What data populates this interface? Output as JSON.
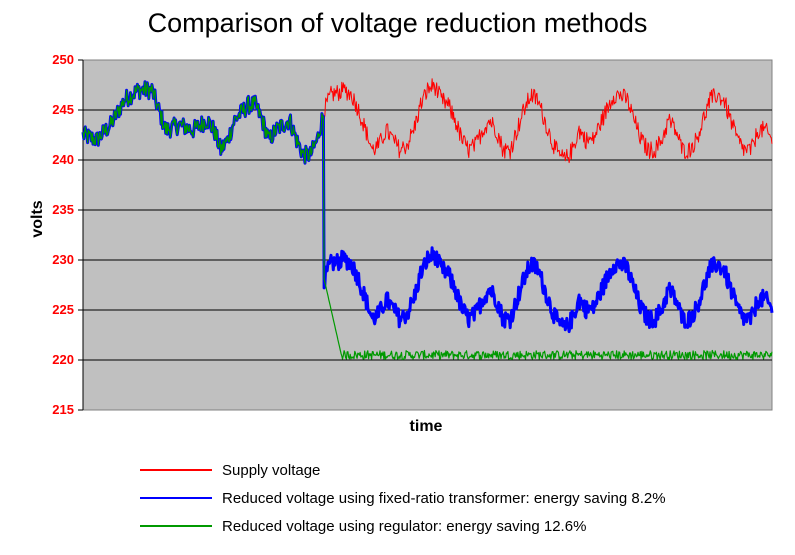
{
  "chart_data": {
    "type": "line",
    "title": "Comparison of voltage reduction methods",
    "xlabel": "time",
    "ylabel": "volts",
    "ylim": [
      215,
      250
    ],
    "yticks": [
      215,
      220,
      225,
      230,
      235,
      240,
      245,
      250
    ],
    "grid": true,
    "legend_position": "bottom",
    "x_range": [
      0,
      100
    ],
    "switch_time": 35,
    "series": [
      {
        "name": "Supply voltage",
        "color": "#ff0000",
        "keypoints": [
          [
            0,
            242.5
          ],
          [
            2,
            242
          ],
          [
            4,
            243.5
          ],
          [
            6,
            246
          ],
          [
            8,
            247
          ],
          [
            10,
            247
          ],
          [
            11,
            245
          ],
          [
            12,
            243
          ],
          [
            14,
            243.5
          ],
          [
            16,
            243
          ],
          [
            18,
            244
          ],
          [
            19,
            243
          ],
          [
            20,
            241
          ],
          [
            21,
            242
          ],
          [
            22,
            244
          ],
          [
            24,
            245.5
          ],
          [
            25,
            245.5
          ],
          [
            26,
            244
          ],
          [
            27,
            242
          ],
          [
            28,
            243
          ],
          [
            30,
            244
          ],
          [
            31,
            242
          ],
          [
            32,
            240.5
          ],
          [
            33,
            240.5
          ],
          [
            34,
            242
          ],
          [
            35,
            245
          ],
          [
            36,
            246.5
          ],
          [
            38,
            247
          ],
          [
            39,
            246.5
          ],
          [
            40,
            245
          ],
          [
            41,
            243
          ],
          [
            42,
            241
          ],
          [
            43,
            241.5
          ],
          [
            44,
            243
          ],
          [
            45,
            242
          ],
          [
            46,
            241
          ],
          [
            47,
            241.5
          ],
          [
            48,
            243
          ],
          [
            49,
            245.5
          ],
          [
            50,
            247
          ],
          [
            51,
            247.5
          ],
          [
            52,
            246
          ],
          [
            53,
            245.5
          ],
          [
            54,
            244
          ],
          [
            55,
            242
          ],
          [
            56,
            241
          ],
          [
            57,
            241.5
          ],
          [
            58,
            243
          ],
          [
            59,
            244
          ],
          [
            60,
            243
          ],
          [
            61,
            241
          ],
          [
            62,
            241
          ],
          [
            63,
            243
          ],
          [
            64,
            245
          ],
          [
            65,
            246.5
          ],
          [
            66,
            246
          ],
          [
            67,
            244
          ],
          [
            68,
            242
          ],
          [
            69,
            240.5
          ],
          [
            70,
            240
          ],
          [
            71,
            241
          ],
          [
            72,
            243
          ],
          [
            73,
            242
          ],
          [
            74,
            242
          ],
          [
            75,
            243.5
          ],
          [
            76,
            245
          ],
          [
            77,
            246.5
          ],
          [
            78,
            246.5
          ],
          [
            79,
            246
          ],
          [
            80,
            244
          ],
          [
            81,
            242
          ],
          [
            82,
            241
          ],
          [
            83,
            241
          ],
          [
            84,
            242
          ],
          [
            85,
            244
          ],
          [
            86,
            243
          ],
          [
            87,
            241
          ],
          [
            88,
            241
          ],
          [
            89,
            242
          ],
          [
            90,
            244
          ],
          [
            91,
            246
          ],
          [
            92,
            246.5
          ],
          [
            93,
            246
          ],
          [
            94,
            244
          ],
          [
            95,
            242
          ],
          [
            96,
            241
          ],
          [
            97,
            241
          ],
          [
            98,
            243
          ],
          [
            99,
            243
          ],
          [
            100,
            242
          ]
        ]
      },
      {
        "name": "Reduced voltage using fixed-ratio transformer: energy saving 8.2%",
        "color": "#0000ff",
        "drop": 16.9
      },
      {
        "name": "Reduced voltage using regulator: energy saving 12.6%",
        "color": "#009900",
        "regulated_level": 220.5,
        "settle_duration": 2.5
      }
    ]
  }
}
